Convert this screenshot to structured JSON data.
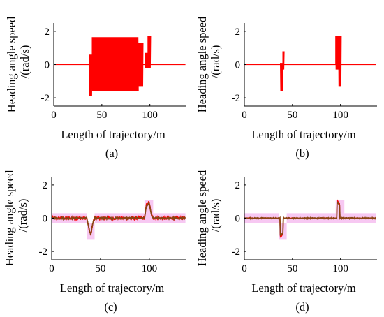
{
  "chart_data": [
    {
      "type": "line",
      "caption": "(a)",
      "xlabel": "Length of trajectory/m",
      "ylabel_line1": "Heading angle speed",
      "ylabel_line2": "/(rad/s)",
      "xlim": [
        0,
        138
      ],
      "ylim": [
        -2.5,
        2.5
      ],
      "xticks": [
        "0",
        "50",
        "100"
      ],
      "yticks": [
        "2",
        "0",
        "-2"
      ],
      "band": false,
      "series": [
        {
          "color": "#ff0000",
          "kind": "osc",
          "segments": [
            [
              37,
              40,
              -1.9,
              0.6
            ],
            [
              40,
              88,
              -1.6,
              1.65
            ],
            [
              88,
              93,
              -1.3,
              1.3
            ],
            [
              95,
              98,
              -0.2,
              0.7
            ],
            [
              98,
              101,
              -0.2,
              1.7
            ]
          ]
        }
      ]
    },
    {
      "type": "line",
      "caption": "(b)",
      "xlabel": "Length of trajectory/m",
      "ylabel_line1": "Heading angle speed",
      "ylabel_line2": "/(rad/s)",
      "xlim": [
        0,
        138
      ],
      "ylim": [
        -2.5,
        2.5
      ],
      "xticks": [
        "0",
        "50",
        "100"
      ],
      "yticks": [
        "2",
        "0",
        "-2"
      ],
      "band": false,
      "series": [
        {
          "color": "#ff0000",
          "kind": "osc",
          "segments": [
            [
              37.5,
              40,
              -1.6,
              0.1
            ],
            [
              40,
              41.5,
              -0.3,
              0.8
            ],
            [
              95,
              98,
              -0.3,
              1.7
            ],
            [
              98,
              101,
              -1.3,
              1.7
            ]
          ]
        }
      ]
    },
    {
      "type": "line",
      "caption": "(c)",
      "xlabel": "Length of trajectory/m",
      "ylabel_line1": "Heading angle speed",
      "ylabel_line2": "/(rad/s)",
      "xlim": [
        0,
        138
      ],
      "ylim": [
        -2.5,
        2.5
      ],
      "xticks": [
        "0",
        "50",
        "100"
      ],
      "yticks": [
        "2",
        "0",
        "-2"
      ],
      "band": true,
      "series": [
        {
          "color": "#ff0000",
          "kind": "noise",
          "amp": 0.1,
          "points": [
            [
              0,
              0
            ],
            [
              36,
              0
            ],
            [
              38,
              -0.6
            ],
            [
              40,
              -1.05
            ],
            [
              42,
              -0.3
            ],
            [
              44,
              0
            ],
            [
              95,
              0
            ],
            [
              97,
              0.8
            ],
            [
              100,
              0.95
            ],
            [
              102,
              0.2
            ],
            [
              104,
              0
            ],
            [
              137,
              0
            ]
          ]
        },
        {
          "color": "#8b4513",
          "kind": "noise",
          "amp": 0.05,
          "points": [
            [
              0,
              0
            ],
            [
              36,
              0
            ],
            [
              38,
              -0.6
            ],
            [
              40,
              -1.0
            ],
            [
              42,
              -0.3
            ],
            [
              44,
              0
            ],
            [
              95,
              0
            ],
            [
              97,
              0.7
            ],
            [
              100,
              0.9
            ],
            [
              102,
              0.2
            ],
            [
              104,
              0
            ],
            [
              137,
              0
            ]
          ]
        }
      ]
    },
    {
      "type": "line",
      "caption": "(d)",
      "xlabel": "Length of trajectory/m",
      "ylabel_line1": "Heading angle speed",
      "ylabel_line2": "/(rad/s)",
      "xlim": [
        0,
        138
      ],
      "ylim": [
        -2.5,
        2.5
      ],
      "xticks": [
        "0",
        "50",
        "100"
      ],
      "yticks": [
        "2",
        "0",
        "-2"
      ],
      "band": true,
      "series": [
        {
          "color": "#ff0000",
          "kind": "noise",
          "amp": 0.02,
          "points": [
            [
              0,
              0
            ],
            [
              37,
              0
            ],
            [
              37.5,
              -1.15
            ],
            [
              40,
              -0.95
            ],
            [
              40.5,
              0
            ],
            [
              96,
              0
            ],
            [
              96.5,
              1.1
            ],
            [
              99,
              0.85
            ],
            [
              99.5,
              0
            ],
            [
              137,
              0
            ]
          ]
        },
        {
          "color": "#8b4513",
          "kind": "noise",
          "amp": 0.03,
          "points": [
            [
              0,
              0
            ],
            [
              37,
              0
            ],
            [
              37.5,
              -1.05
            ],
            [
              40,
              -0.9
            ],
            [
              40.5,
              0
            ],
            [
              96,
              0
            ],
            [
              96.5,
              1.0
            ],
            [
              99,
              0.8
            ],
            [
              99.5,
              0
            ],
            [
              137,
              0
            ]
          ]
        }
      ]
    }
  ]
}
